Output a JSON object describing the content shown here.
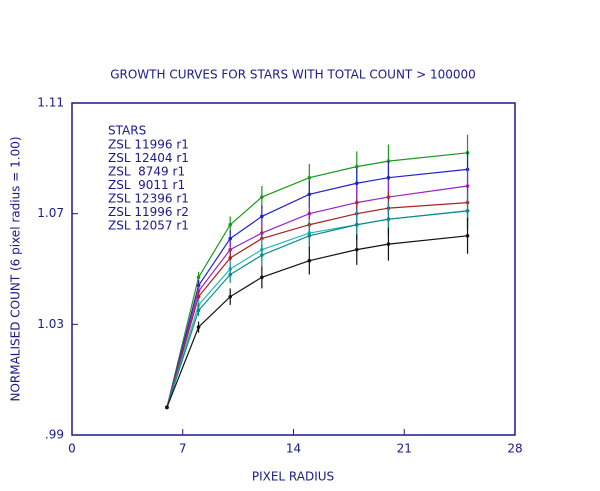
{
  "chart_data": {
    "type": "line",
    "title": "GROWTH CURVES FOR STARS WITH TOTAL COUNT > 100000",
    "x_label": "PIXEL RADIUS",
    "y_label": "NORMALISED COUNT (6 pixel radius = 1.00)",
    "legend_title": "STARS",
    "x": [
      6,
      8,
      10,
      12,
      15,
      18,
      20,
      25
    ],
    "xlim": [
      0,
      28
    ],
    "xticks": [
      0,
      7,
      14,
      21,
      28
    ],
    "ylim": [
      0.99,
      1.11
    ],
    "yticks": [
      {
        "value": 0.99,
        "label": ".99"
      },
      {
        "value": 1.03,
        "label": "1.03"
      },
      {
        "value": 1.07,
        "label": "1.07"
      },
      {
        "value": 1.11,
        "label": "1.11"
      }
    ],
    "series": [
      {
        "name": "ZSL 11996 r1",
        "color": "#1a9a1a",
        "values": [
          1.0,
          1.047,
          1.066,
          1.076,
          1.083,
          1.087,
          1.089,
          1.092
        ],
        "errors": [
          0.0005,
          0.002,
          0.003,
          0.004,
          0.005,
          0.0055,
          0.006,
          0.0065
        ]
      },
      {
        "name": "ZSL 12404 r1",
        "color": "#2222cc",
        "values": [
          1.0,
          1.044,
          1.061,
          1.069,
          1.077,
          1.081,
          1.083,
          1.086
        ],
        "errors": [
          0.0005,
          0.002,
          0.003,
          0.004,
          0.005,
          0.0055,
          0.006,
          0.0065
        ]
      },
      {
        "name": "ZSL  8749 r1",
        "color": "#9922cc",
        "values": [
          1.0,
          1.042,
          1.057,
          1.063,
          1.07,
          1.074,
          1.076,
          1.08
        ],
        "errors": [
          0.0005,
          0.002,
          0.003,
          0.004,
          0.005,
          0.0055,
          0.006,
          0.0065
        ]
      },
      {
        "name": "ZSL  9011 r1",
        "color": "#aa2222",
        "values": [
          1.0,
          1.04,
          1.054,
          1.061,
          1.066,
          1.07,
          1.072,
          1.074
        ],
        "errors": [
          0.0005,
          0.002,
          0.003,
          0.004,
          0.005,
          0.0055,
          0.006,
          0.0065
        ]
      },
      {
        "name": "ZSL 12396 r1",
        "color": "#22bbbb",
        "values": [
          1.0,
          1.037,
          1.05,
          1.057,
          1.063,
          1.066,
          1.068,
          1.071
        ],
        "errors": [
          0.0005,
          0.002,
          0.003,
          0.004,
          0.005,
          0.0055,
          0.006,
          0.0065
        ]
      },
      {
        "name": "ZSL 11996 r2",
        "color": "#118888",
        "values": [
          1.0,
          1.035,
          1.048,
          1.055,
          1.062,
          1.066,
          1.068,
          1.071
        ],
        "errors": [
          0.0005,
          0.002,
          0.003,
          0.004,
          0.005,
          0.0055,
          0.006,
          0.0065
        ]
      },
      {
        "name": "ZSL 12057 r1",
        "color": "#111111",
        "values": [
          1.0,
          1.029,
          1.04,
          1.047,
          1.053,
          1.057,
          1.059,
          1.062
        ],
        "errors": [
          0.0005,
          0.002,
          0.003,
          0.004,
          0.005,
          0.0055,
          0.006,
          0.0065
        ]
      }
    ]
  }
}
